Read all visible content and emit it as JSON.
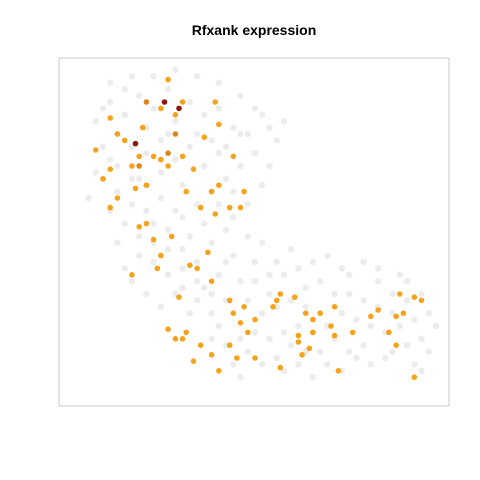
{
  "chart_data": {
    "type": "scatter",
    "title": "Rfxank expression",
    "xlabel": "",
    "ylabel": "",
    "xlim": [
      0,
      100
    ],
    "ylim": [
      0,
      100
    ],
    "grid": false,
    "axes_visible": false,
    "colors": {
      "background_cells": "#e6e6e6",
      "expressing_low": "#f7a21b",
      "expressing_mid": "#e0841c",
      "expressing_high": "#8b1a0a",
      "panel_border": "#c8c8c8"
    },
    "series": [
      {
        "level": "none",
        "points": [
          [
            10,
            90
          ],
          [
            14,
            86
          ],
          [
            18,
            92
          ],
          [
            22,
            88
          ],
          [
            26,
            94
          ],
          [
            12,
            80
          ],
          [
            16,
            76
          ],
          [
            20,
            82
          ],
          [
            24,
            78
          ],
          [
            28,
            84
          ],
          [
            32,
            90
          ],
          [
            36,
            86
          ],
          [
            40,
            88
          ],
          [
            44,
            82
          ],
          [
            48,
            80
          ],
          [
            50,
            74
          ],
          [
            46,
            70
          ],
          [
            42,
            66
          ],
          [
            38,
            62
          ],
          [
            34,
            58
          ],
          [
            30,
            54
          ],
          [
            26,
            50
          ],
          [
            22,
            46
          ],
          [
            18,
            42
          ],
          [
            14,
            38
          ],
          [
            10,
            72
          ],
          [
            8,
            66
          ],
          [
            12,
            62
          ],
          [
            16,
            58
          ],
          [
            20,
            64
          ],
          [
            24,
            68
          ],
          [
            28,
            72
          ],
          [
            32,
            76
          ],
          [
            36,
            70
          ],
          [
            40,
            74
          ],
          [
            44,
            62
          ],
          [
            48,
            58
          ],
          [
            52,
            64
          ],
          [
            54,
            70
          ],
          [
            56,
            78
          ],
          [
            58,
            84
          ],
          [
            52,
            86
          ],
          [
            46,
            92
          ],
          [
            40,
            96
          ],
          [
            34,
            98
          ],
          [
            28,
            100
          ],
          [
            22,
            98
          ],
          [
            16,
            98
          ],
          [
            10,
            96
          ],
          [
            6,
            84
          ],
          [
            8,
            76
          ],
          [
            6,
            68
          ],
          [
            4,
            60
          ],
          [
            10,
            56
          ],
          [
            14,
            52
          ],
          [
            18,
            48
          ],
          [
            22,
            40
          ],
          [
            26,
            36
          ],
          [
            30,
            32
          ],
          [
            34,
            28
          ],
          [
            38,
            24
          ],
          [
            30,
            44
          ],
          [
            34,
            40
          ],
          [
            38,
            46
          ],
          [
            42,
            50
          ],
          [
            44,
            42
          ],
          [
            40,
            36
          ],
          [
            36,
            32
          ],
          [
            32,
            24
          ],
          [
            28,
            30
          ],
          [
            24,
            26
          ],
          [
            20,
            30
          ],
          [
            16,
            34
          ],
          [
            12,
            46
          ],
          [
            40,
            20
          ],
          [
            42,
            14
          ],
          [
            44,
            8
          ],
          [
            46,
            4
          ],
          [
            48,
            12
          ],
          [
            50,
            18
          ],
          [
            52,
            24
          ],
          [
            54,
            16
          ],
          [
            56,
            10
          ],
          [
            58,
            6
          ],
          [
            60,
            14
          ],
          [
            62,
            20
          ],
          [
            64,
            26
          ],
          [
            66,
            18
          ],
          [
            68,
            12
          ],
          [
            70,
            8
          ],
          [
            72,
            16
          ],
          [
            74,
            24
          ],
          [
            76,
            30
          ],
          [
            78,
            22
          ],
          [
            80,
            14
          ],
          [
            82,
            20
          ],
          [
            84,
            26
          ],
          [
            86,
            18
          ],
          [
            88,
            12
          ],
          [
            90,
            20
          ],
          [
            92,
            28
          ],
          [
            94,
            22
          ],
          [
            96,
            16
          ],
          [
            98,
            24
          ],
          [
            92,
            34
          ],
          [
            88,
            30
          ],
          [
            84,
            34
          ],
          [
            80,
            28
          ],
          [
            76,
            36
          ],
          [
            72,
            30
          ],
          [
            68,
            34
          ],
          [
            64,
            32
          ],
          [
            60,
            28
          ],
          [
            56,
            26
          ],
          [
            62,
            38
          ],
          [
            66,
            40
          ],
          [
            70,
            42
          ],
          [
            74,
            38
          ],
          [
            58,
            36
          ],
          [
            54,
            30
          ],
          [
            50,
            34
          ],
          [
            48,
            28
          ],
          [
            86,
            10
          ],
          [
            82,
            8
          ],
          [
            78,
            10
          ],
          [
            74,
            6
          ],
          [
            66,
            4
          ],
          [
            62,
            8
          ],
          [
            96,
            30
          ],
          [
            90,
            36
          ],
          [
            94,
            8
          ],
          [
            98,
            12
          ],
          [
            100,
            20
          ],
          [
            84,
            38
          ],
          [
            80,
            40
          ],
          [
            64,
            12
          ],
          [
            52,
            8
          ],
          [
            46,
            16
          ],
          [
            42,
            28
          ],
          [
            38,
            16
          ],
          [
            60,
            44
          ],
          [
            56,
            40
          ],
          [
            52,
            46
          ],
          [
            48,
            48
          ],
          [
            44,
            54
          ],
          [
            40,
            58
          ],
          [
            36,
            52
          ],
          [
            32,
            48
          ],
          [
            28,
            56
          ],
          [
            24,
            60
          ],
          [
            20,
            56
          ],
          [
            16,
            66
          ],
          [
            12,
            70
          ],
          [
            8,
            88
          ],
          [
            14,
            94
          ],
          [
            30,
            64
          ],
          [
            34,
            80
          ],
          [
            38,
            78
          ],
          [
            42,
            76
          ],
          [
            46,
            80
          ],
          [
            50,
            88
          ],
          [
            54,
            82
          ],
          [
            26,
            80
          ],
          [
            20,
            74
          ],
          [
            18,
            66
          ],
          [
            22,
            52
          ],
          [
            26,
            44
          ],
          [
            30,
            38
          ],
          [
            34,
            34
          ],
          [
            38,
            30
          ],
          [
            42,
            40
          ],
          [
            46,
            34
          ],
          [
            50,
            40
          ],
          [
            54,
            36
          ],
          [
            58,
            18
          ],
          [
            70,
            20
          ],
          [
            76,
            12
          ],
          [
            88,
            24
          ],
          [
            92,
            14
          ],
          [
            96,
            6
          ]
        ]
      },
      {
        "level": "low",
        "points": [
          [
            26,
            97
          ],
          [
            39,
            90
          ],
          [
            36,
            79
          ],
          [
            10,
            85
          ],
          [
            6,
            75
          ],
          [
            12,
            80
          ],
          [
            16,
            70
          ],
          [
            20,
            64
          ],
          [
            22,
            73
          ],
          [
            26,
            70
          ],
          [
            33,
            69
          ],
          [
            28,
            86
          ],
          [
            30,
            90
          ],
          [
            24,
            88
          ],
          [
            14,
            78
          ],
          [
            8,
            66
          ],
          [
            10,
            69
          ],
          [
            18,
            73
          ],
          [
            40,
            83
          ],
          [
            44,
            73
          ],
          [
            47,
            62
          ],
          [
            46,
            57
          ],
          [
            39,
            55
          ],
          [
            30,
            73
          ],
          [
            31,
            62
          ],
          [
            24,
            72
          ],
          [
            17,
            63
          ],
          [
            12,
            60
          ],
          [
            18,
            51
          ],
          [
            22,
            47
          ],
          [
            16,
            36
          ],
          [
            27,
            48
          ],
          [
            23,
            38
          ],
          [
            34,
            38
          ],
          [
            37,
            43
          ],
          [
            32,
            39
          ],
          [
            38,
            34
          ],
          [
            43,
            28
          ],
          [
            46,
            21
          ],
          [
            38,
            11
          ],
          [
            35,
            14
          ],
          [
            30,
            16
          ],
          [
            28,
            16
          ],
          [
            26,
            19
          ],
          [
            33,
            9
          ],
          [
            47,
            26
          ],
          [
            43,
            14
          ],
          [
            48,
            18
          ],
          [
            50,
            22
          ],
          [
            55,
            26
          ],
          [
            57,
            30
          ],
          [
            56,
            28
          ],
          [
            61,
            29
          ],
          [
            64,
            24
          ],
          [
            66,
            22
          ],
          [
            66,
            18
          ],
          [
            71,
            20
          ],
          [
            72,
            26
          ],
          [
            77,
            18
          ],
          [
            82,
            23
          ],
          [
            84,
            25
          ],
          [
            87,
            18
          ],
          [
            89,
            23
          ],
          [
            91,
            24
          ],
          [
            94,
            29
          ],
          [
            96,
            28
          ],
          [
            90,
            30
          ],
          [
            68,
            24
          ],
          [
            62,
            17
          ],
          [
            62,
            15
          ],
          [
            72,
            17
          ],
          [
            73,
            6
          ],
          [
            89,
            14
          ],
          [
            94,
            4
          ],
          [
            65,
            13
          ],
          [
            63,
            11
          ],
          [
            57,
            7
          ],
          [
            50,
            10
          ],
          [
            45,
            10
          ],
          [
            40,
            6
          ],
          [
            31,
            18
          ],
          [
            44,
            24
          ],
          [
            29,
            29
          ],
          [
            24,
            42
          ],
          [
            20,
            52
          ],
          [
            35,
            57
          ],
          [
            40,
            64
          ],
          [
            19,
            82
          ],
          [
            43,
            57
          ],
          [
            38,
            62
          ],
          [
            10,
            57
          ]
        ]
      },
      {
        "level": "mid",
        "points": [
          [
            20,
            90
          ],
          [
            28,
            80
          ],
          [
            18,
            70
          ],
          [
            26,
            74
          ]
        ]
      },
      {
        "level": "high",
        "points": [
          [
            25,
            90
          ],
          [
            29,
            88
          ],
          [
            17,
            77
          ]
        ]
      }
    ]
  }
}
